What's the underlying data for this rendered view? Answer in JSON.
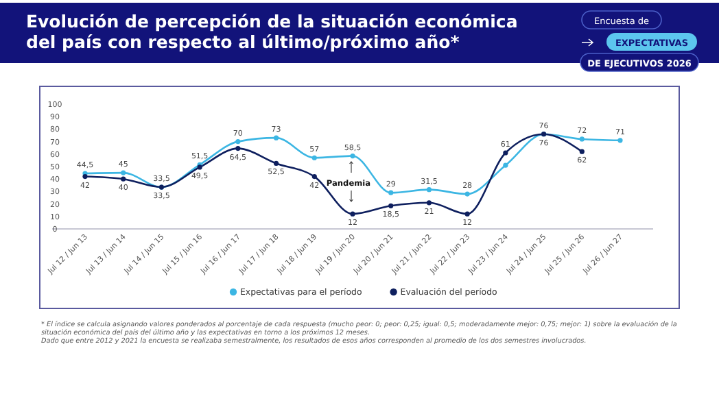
{
  "chart_data": {
    "type": "line",
    "title": "Evolución de percepción de la situación económica del país con respecto al último/próximo año*",
    "categories": [
      "Jul 12 / Jun 13",
      "Jul 13 / Jun 14",
      "Jul 14 / Jun 15",
      "Jul 15 / Jun 16",
      "Jul 16 / Jun 17",
      "Jul 17 / Jun 18",
      "Jul 18 / Jun 19",
      "Jul 19 / Jun 20",
      "Jul 20 / Jun 21",
      "Jul 21 / Jun 22",
      "Jul 22 / Jun 23",
      "Jul 23 / Jun 24",
      "Jul 24 / Jun 25",
      "Jul 25 / Jun 26",
      "Jul 26 / Jun 27"
    ],
    "series": [
      {
        "name": "Expectativas para el período",
        "color": "#3cb6e3",
        "values": [
          44.5,
          45,
          33.5,
          51.5,
          70,
          73,
          57,
          58.5,
          29,
          31.5,
          28,
          51,
          76,
          72,
          71
        ],
        "value_labels": [
          "44,5",
          "45",
          "33,5",
          "51,5",
          "70",
          "73",
          "57",
          "58,5",
          "29",
          "31,5",
          "28",
          null,
          "76",
          "72",
          "71"
        ]
      },
      {
        "name": "Evaluación del período",
        "color": "#0e1f5e",
        "values": [
          42,
          40,
          33.5,
          49.5,
          64.5,
          52.5,
          42,
          12,
          18.5,
          21,
          12,
          61,
          76,
          62,
          null
        ],
        "value_labels": [
          "42",
          "40",
          "33,5",
          "49,5",
          "64,5",
          "52,5",
          "42",
          "12",
          "18,5",
          "21",
          "12",
          "61",
          "76",
          "62",
          null
        ]
      }
    ],
    "ylim": [
      0,
      100
    ],
    "yticks": [
      0,
      10,
      20,
      30,
      40,
      50,
      60,
      70,
      80,
      90,
      100
    ],
    "grid": false,
    "legend": "bottom",
    "marker": "circle",
    "line_style": "solid",
    "annotations": [
      "Pandemia",
      "Encuesta de",
      "EXPECTATIVAS",
      "DE EJECUTIVOS 2026",
      "* El índice se calcula asignando valores ponderados al porcentaje de cada respuesta (mucho peor: 0; peor: 0,25; igual: 0,5; moderadamente mejor: 0,75; mejor: 1) sobre la evaluación de la situación económica del país del último año y las expectativas en torno a los próximos 12 meses.",
      "Dado que entre 2012 y 2021 la encuesta se realizaba semestralmente, los resultados de esos años corresponden al promedio de los dos semestres involucrados."
    ]
  }
}
